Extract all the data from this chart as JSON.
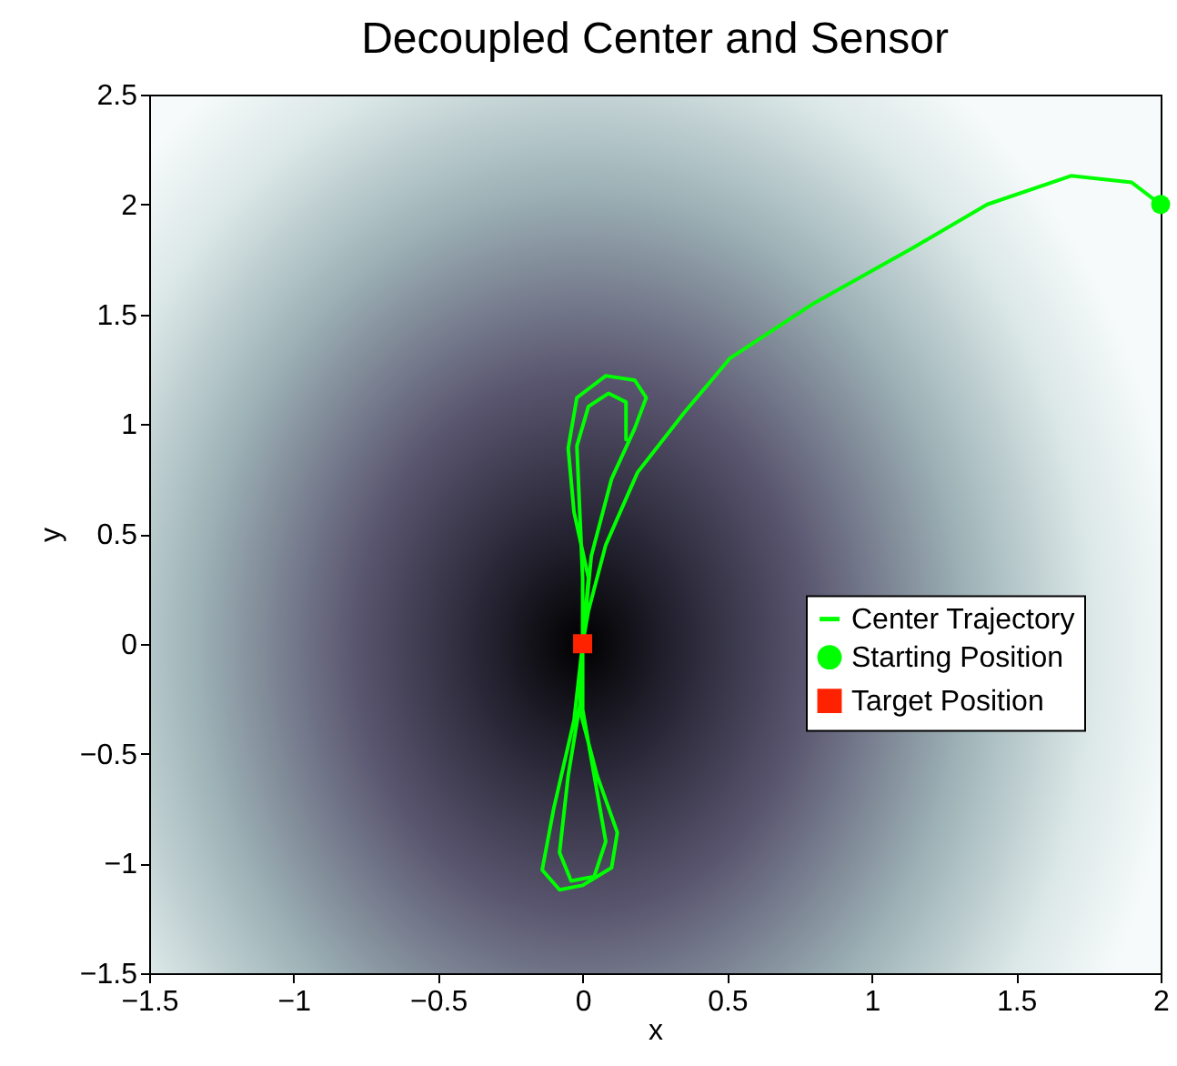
{
  "chart_data": {
    "type": "line",
    "title": "Decoupled Center and Sensor",
    "xlabel": "x",
    "ylabel": "y",
    "xlim": [
      -1.5,
      2
    ],
    "ylim": [
      -1.5,
      2.5
    ],
    "xticks": [
      -1.5,
      -1,
      -0.5,
      0,
      0.5,
      1,
      1.5,
      2
    ],
    "yticks": [
      -1.5,
      -1,
      -0.5,
      0,
      0.5,
      1,
      1.5,
      2,
      2.5
    ],
    "grid": false,
    "legend": "right",
    "series": [
      {
        "name": "Center Trajectory",
        "color": "#00ff00",
        "line_style": "solid",
        "x": [
          2,
          1.9,
          1.69,
          1.4,
          1.14,
          0.8,
          0.51,
          0.35,
          0.19,
          0.08,
          0.02,
          0,
          -0.01,
          0.05,
          0.12,
          0.1,
          0,
          -0.08,
          -0.14,
          -0.1,
          -0.03,
          0,
          0.02,
          -0.03,
          -0.05,
          -0.02,
          0.08,
          0.18,
          0.22,
          0.18,
          0.1,
          0.03,
          0,
          0,
          0.04,
          0.08,
          0.04,
          -0.04,
          -0.08,
          -0.05,
          0,
          0,
          0,
          -0.01,
          -0.02,
          0.02,
          0.09,
          0.15,
          0.15
        ],
        "values": [
          2,
          2.1,
          2.13,
          2.0,
          1.8,
          1.55,
          1.3,
          1.05,
          0.78,
          0.45,
          0.15,
          0,
          -0.3,
          -0.6,
          -0.86,
          -1.02,
          -1.1,
          -1.12,
          -1.03,
          -0.75,
          -0.35,
          0,
          0.3,
          0.6,
          0.89,
          1.12,
          1.22,
          1.2,
          1.12,
          0.98,
          0.75,
          0.4,
          0,
          -0.3,
          -0.6,
          -0.9,
          -1.06,
          -1.08,
          -0.95,
          -0.6,
          -0.2,
          0,
          0.3,
          0.6,
          0.9,
          1.08,
          1.14,
          1.1,
          0.93
        ]
      },
      {
        "name": "Starting Position",
        "type": "scatter",
        "marker": "circle",
        "color": "#00ff00",
        "x": [
          2
        ],
        "values": [
          2
        ]
      },
      {
        "name": "Target Position",
        "type": "scatter",
        "marker": "square",
        "color": "#ff2200",
        "x": [
          0
        ],
        "values": [
          0
        ]
      }
    ]
  }
}
